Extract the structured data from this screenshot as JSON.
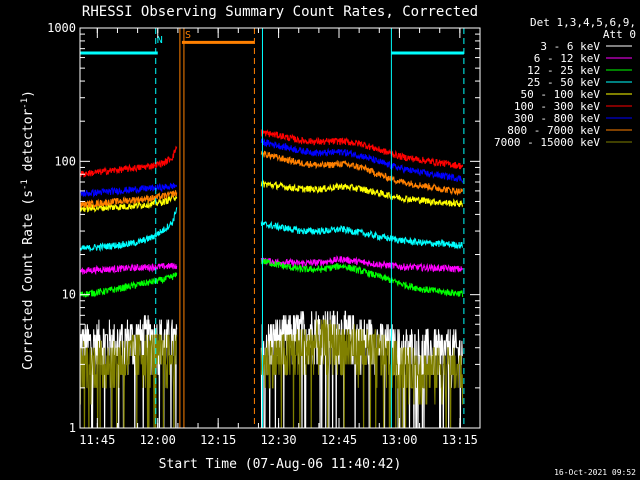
{
  "chart_data": {
    "type": "line",
    "title": "RHESSI Observing Summary Count Rates, Corrected",
    "xlabel": "Start Time (07-Aug-06 11:40:42)",
    "ylabel_main": "Corrected Count Rate (s",
    "ylabel_sup1": "-1",
    "ylabel_mid": " detector",
    "ylabel_sup2": "-1",
    "ylabel_end": ")",
    "yscale": "log",
    "ylim": [
      1,
      1000
    ],
    "xlim": [
      "11:40:42",
      "13:20:00"
    ],
    "x_ticks": [
      "11:45",
      "12:00",
      "12:15",
      "12:30",
      "12:45",
      "13:00",
      "13:15"
    ],
    "y_ticks": [
      "1",
      "10",
      "100",
      "1000"
    ],
    "legend_header": [
      "Det 1,3,4,5,6,9,",
      "Att 0"
    ],
    "legend_placement": "right",
    "footer_timestamp": "16-Oct-2021 09:52",
    "annotations": [
      {
        "label": "N",
        "color": "#00ffff"
      },
      {
        "label": "S",
        "color": "#ff8000"
      }
    ],
    "flag_bars": [
      {
        "color": "#00ffff",
        "start": "11:40:42",
        "end": "12:00:00",
        "y": 650
      },
      {
        "color": "#ff8000",
        "start": "12:06:00",
        "end": "12:24:00",
        "y": 780
      },
      {
        "color": "#00ffff",
        "start": "12:58:00",
        "end": "13:16:00",
        "y": 650
      }
    ],
    "vlines": [
      {
        "time": "11:40:42",
        "color": "#00ffff",
        "style": "solid"
      },
      {
        "time": "11:59:30",
        "color": "#00ffff",
        "style": "dashed"
      },
      {
        "time": "12:05:30",
        "color": "#ff8000",
        "style": "solid"
      },
      {
        "time": "12:06:30",
        "color": "#ff8000",
        "style": "solid"
      },
      {
        "time": "12:24:00",
        "color": "#ff8000",
        "style": "dashed"
      },
      {
        "time": "12:26:00",
        "color": "#00ffff",
        "style": "solid"
      },
      {
        "time": "12:58:00",
        "color": "#00ffff",
        "style": "solid"
      },
      {
        "time": "13:16:00",
        "color": "#00ffff",
        "style": "dashed"
      }
    ],
    "series": [
      {
        "name": "3 - 6 keV",
        "color": "#ffffff",
        "seg1": [
          [
            0,
            4.3
          ],
          [
            3,
            4.3
          ],
          [
            6,
            4.5
          ],
          [
            9,
            4.4
          ],
          [
            12,
            4.6
          ],
          [
            15,
            4.7
          ],
          [
            18,
            4.8
          ],
          [
            21,
            4.5
          ],
          [
            24,
            4.4
          ]
        ],
        "seg2": [
          [
            45,
            4.3
          ],
          [
            50,
            4.8
          ],
          [
            55,
            5.3
          ],
          [
            60,
            5.5
          ],
          [
            65,
            5.2
          ],
          [
            70,
            4.8
          ],
          [
            75,
            4.3
          ],
          [
            80,
            3.9
          ],
          [
            85,
            3.8
          ],
          [
            90,
            3.8
          ],
          [
            95,
            3.7
          ]
        ]
      },
      {
        "name": "6 - 12 keV",
        "color": "#ff00ff",
        "seg1": [
          [
            0,
            15
          ],
          [
            3,
            15.3
          ],
          [
            6,
            15.5
          ],
          [
            9,
            15.6
          ],
          [
            12,
            15.8
          ],
          [
            15,
            16
          ],
          [
            18,
            16.1
          ],
          [
            21,
            16.3
          ],
          [
            24,
            16.5
          ]
        ],
        "seg2": [
          [
            45,
            18
          ],
          [
            50,
            17.5
          ],
          [
            55,
            17.2
          ],
          [
            60,
            17.5
          ],
          [
            65,
            18.5
          ],
          [
            70,
            17.5
          ],
          [
            75,
            16.8
          ],
          [
            80,
            16.2
          ],
          [
            85,
            16
          ],
          [
            90,
            15.8
          ],
          [
            95,
            15.5
          ]
        ]
      },
      {
        "name": "12 - 25 keV",
        "color": "#00ff00",
        "seg1": [
          [
            0,
            10
          ],
          [
            3,
            10.3
          ],
          [
            6,
            10.6
          ],
          [
            9,
            11
          ],
          [
            12,
            11.5
          ],
          [
            15,
            12
          ],
          [
            18,
            12.5
          ],
          [
            21,
            13
          ],
          [
            24,
            14
          ]
        ],
        "seg2": [
          [
            45,
            18
          ],
          [
            50,
            16.5
          ],
          [
            55,
            15.5
          ],
          [
            60,
            15.5
          ],
          [
            65,
            16.5
          ],
          [
            70,
            15
          ],
          [
            75,
            13.5
          ],
          [
            80,
            12
          ],
          [
            85,
            11
          ],
          [
            90,
            10.5
          ],
          [
            95,
            10.2
          ]
        ]
      },
      {
        "name": "25 - 50 keV",
        "color": "#00ffff",
        "seg1": [
          [
            0,
            22
          ],
          [
            3,
            22.5
          ],
          [
            6,
            23
          ],
          [
            9,
            23.5
          ],
          [
            12,
            24
          ],
          [
            15,
            25
          ],
          [
            18,
            27
          ],
          [
            21,
            31
          ],
          [
            23,
            35
          ],
          [
            24,
            45
          ]
        ],
        "seg2": [
          [
            45,
            34
          ],
          [
            50,
            32
          ],
          [
            55,
            30
          ],
          [
            60,
            30
          ],
          [
            65,
            31
          ],
          [
            70,
            29
          ],
          [
            75,
            27
          ],
          [
            80,
            25.5
          ],
          [
            85,
            24.5
          ],
          [
            90,
            24
          ],
          [
            95,
            23.5
          ]
        ]
      },
      {
        "name": "50 - 100 keV",
        "color": "#ffff00",
        "seg1": [
          [
            0,
            44
          ],
          [
            3,
            44.5
          ],
          [
            6,
            45
          ],
          [
            9,
            45.5
          ],
          [
            12,
            46
          ],
          [
            15,
            47
          ],
          [
            18,
            48
          ],
          [
            21,
            50
          ],
          [
            24,
            55
          ]
        ],
        "seg2": [
          [
            45,
            68
          ],
          [
            50,
            65
          ],
          [
            55,
            62
          ],
          [
            60,
            62
          ],
          [
            65,
            65
          ],
          [
            70,
            62
          ],
          [
            75,
            57
          ],
          [
            80,
            53
          ],
          [
            85,
            51
          ],
          [
            90,
            49
          ],
          [
            95,
            48
          ]
        ]
      },
      {
        "name": "100 - 300 keV",
        "color": "#ff0000",
        "seg1": [
          [
            0,
            80
          ],
          [
            3,
            82
          ],
          [
            6,
            84
          ],
          [
            9,
            86
          ],
          [
            12,
            88
          ],
          [
            15,
            90
          ],
          [
            18,
            93
          ],
          [
            21,
            98
          ],
          [
            23,
            108
          ],
          [
            24,
            130
          ]
        ],
        "seg2": [
          [
            45,
            165
          ],
          [
            50,
            155
          ],
          [
            55,
            143
          ],
          [
            60,
            140
          ],
          [
            65,
            142
          ],
          [
            70,
            135
          ],
          [
            75,
            120
          ],
          [
            80,
            108
          ],
          [
            85,
            102
          ],
          [
            90,
            97
          ],
          [
            95,
            92
          ]
        ]
      },
      {
        "name": "300 - 800 keV",
        "color": "#0000ff",
        "seg1": [
          [
            0,
            57
          ],
          [
            3,
            58
          ],
          [
            6,
            59
          ],
          [
            9,
            60
          ],
          [
            12,
            61
          ],
          [
            15,
            62
          ],
          [
            18,
            63
          ],
          [
            21,
            64
          ],
          [
            24,
            66
          ]
        ],
        "seg2": [
          [
            45,
            140
          ],
          [
            50,
            130
          ],
          [
            55,
            120
          ],
          [
            60,
            115
          ],
          [
            65,
            118
          ],
          [
            70,
            110
          ],
          [
            75,
            97
          ],
          [
            80,
            88
          ],
          [
            85,
            82
          ],
          [
            90,
            78
          ],
          [
            95,
            74
          ]
        ]
      },
      {
        "name": "800 - 7000 keV",
        "color": "#ff8000",
        "seg1": [
          [
            0,
            47
          ],
          [
            3,
            48
          ],
          [
            6,
            49
          ],
          [
            9,
            50
          ],
          [
            12,
            51
          ],
          [
            15,
            52
          ],
          [
            18,
            53
          ],
          [
            21,
            55
          ],
          [
            24,
            58
          ]
        ],
        "seg2": [
          [
            45,
            115
          ],
          [
            50,
            105
          ],
          [
            55,
            97
          ],
          [
            60,
            93
          ],
          [
            65,
            96
          ],
          [
            70,
            90
          ],
          [
            75,
            78
          ],
          [
            80,
            70
          ],
          [
            85,
            66
          ],
          [
            90,
            62
          ],
          [
            95,
            59
          ]
        ]
      },
      {
        "name": "7000 - 15000 keV",
        "color": "#808000",
        "seg1": [
          [
            0,
            3.0
          ],
          [
            3,
            3.1
          ],
          [
            6,
            3.3
          ],
          [
            9,
            3.2
          ],
          [
            12,
            3.5
          ],
          [
            15,
            3.6
          ],
          [
            18,
            3.8
          ],
          [
            21,
            3.5
          ],
          [
            24,
            3.4
          ]
        ],
        "seg2": [
          [
            45,
            3.2
          ],
          [
            50,
            3.5
          ],
          [
            55,
            4.0
          ],
          [
            60,
            4.5
          ],
          [
            65,
            4.3
          ],
          [
            70,
            4.0
          ],
          [
            75,
            3.5
          ],
          [
            80,
            3.0
          ],
          [
            85,
            2.8
          ],
          [
            90,
            2.8
          ],
          [
            95,
            2.7
          ]
        ]
      }
    ]
  }
}
